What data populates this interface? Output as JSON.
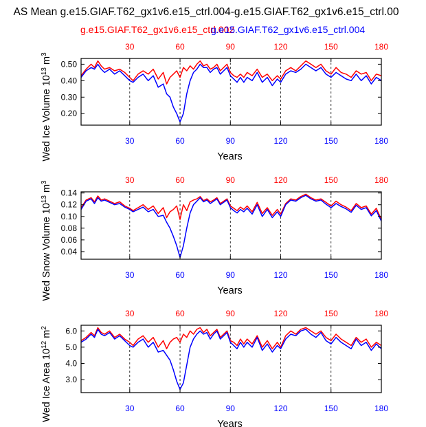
{
  "header": {
    "title": "AS Mean g.e15.GIAF.T62_gx1v6.e15_ctrl.004-g.e15.GIAF.T62_gx1v6.e15_ctrl.00",
    "case_red": "g.e15.GIAF.T62_gx1v6.e15_ctrl.002",
    "case_blue": "g.e15.GIAF.T62_gx1v6.e15_ctrl.004"
  },
  "colors": {
    "red": "#ff0000",
    "blue": "#0000ff",
    "axis": "#000000",
    "grid": "#000000"
  },
  "chart_data": [
    {
      "type": "line",
      "ylabel": "Wed Ice Volume",
      "ylabel_pow_base": "10",
      "ylabel_pow_exp": "13",
      "ylabel_unit": "m",
      "ylabel_unit_exp": "3",
      "xlabel": "Years",
      "xlim": [
        1,
        180
      ],
      "ylim": [
        0.13,
        0.535
      ],
      "yticks": [
        0.2,
        0.3,
        0.4,
        0.5
      ],
      "ytick_labels": [
        "0.20",
        "0.30",
        "0.40",
        "0.50"
      ],
      "xticks": [
        30,
        60,
        90,
        120,
        150,
        180
      ],
      "xtick_labels": [
        "30",
        "60",
        "90",
        "120",
        "150",
        "180"
      ],
      "grid": "vertical dashed at ticks",
      "series": [
        {
          "name": "g.e15.GIAF.T62_gx1v6.e15_ctrl.002",
          "color": "#ff0000",
          "x": [
            1,
            4,
            7,
            9,
            11,
            13,
            15,
            18,
            21,
            24,
            27,
            30,
            32,
            35,
            38,
            41,
            44,
            47,
            50,
            52,
            54,
            56,
            58,
            60,
            62,
            64,
            66,
            68,
            70,
            72,
            74,
            76,
            78,
            80,
            82,
            84,
            86,
            88,
            90,
            92,
            94,
            96,
            98,
            100,
            103,
            106,
            109,
            112,
            115,
            118,
            120,
            123,
            126,
            129,
            132,
            135,
            138,
            141,
            144,
            147,
            150,
            153,
            156,
            159,
            162,
            165,
            168,
            171,
            174,
            177,
            180
          ],
          "y": [
            0.43,
            0.47,
            0.5,
            0.48,
            0.52,
            0.49,
            0.47,
            0.48,
            0.46,
            0.47,
            0.45,
            0.42,
            0.4,
            0.44,
            0.46,
            0.44,
            0.47,
            0.41,
            0.45,
            0.38,
            0.42,
            0.44,
            0.46,
            0.42,
            0.48,
            0.46,
            0.49,
            0.47,
            0.5,
            0.52,
            0.49,
            0.5,
            0.47,
            0.48,
            0.5,
            0.46,
            0.48,
            0.5,
            0.45,
            0.43,
            0.42,
            0.44,
            0.42,
            0.45,
            0.43,
            0.47,
            0.42,
            0.44,
            0.4,
            0.43,
            0.41,
            0.46,
            0.48,
            0.46,
            0.49,
            0.52,
            0.5,
            0.48,
            0.5,
            0.46,
            0.44,
            0.48,
            0.45,
            0.44,
            0.42,
            0.46,
            0.44,
            0.45,
            0.4,
            0.44,
            0.43
          ]
        },
        {
          "name": "g.e15.GIAF.T62_gx1v6.e15_ctrl.004",
          "color": "#0000ff",
          "x": [
            1,
            4,
            7,
            9,
            11,
            13,
            15,
            18,
            21,
            24,
            27,
            30,
            32,
            35,
            38,
            41,
            44,
            47,
            50,
            52,
            54,
            56,
            58,
            60,
            62,
            64,
            66,
            68,
            70,
            72,
            74,
            76,
            78,
            80,
            82,
            84,
            86,
            88,
            90,
            92,
            94,
            96,
            98,
            100,
            103,
            106,
            109,
            112,
            115,
            118,
            120,
            123,
            126,
            129,
            132,
            135,
            138,
            141,
            144,
            147,
            150,
            153,
            156,
            159,
            162,
            165,
            168,
            171,
            174,
            177,
            180
          ],
          "y": [
            0.42,
            0.46,
            0.48,
            0.47,
            0.5,
            0.47,
            0.45,
            0.47,
            0.44,
            0.46,
            0.43,
            0.4,
            0.39,
            0.42,
            0.44,
            0.4,
            0.43,
            0.36,
            0.38,
            0.32,
            0.3,
            0.24,
            0.2,
            0.15,
            0.2,
            0.32,
            0.4,
            0.45,
            0.47,
            0.5,
            0.48,
            0.48,
            0.45,
            0.47,
            0.48,
            0.44,
            0.46,
            0.48,
            0.43,
            0.41,
            0.39,
            0.42,
            0.39,
            0.42,
            0.4,
            0.45,
            0.39,
            0.42,
            0.37,
            0.41,
            0.39,
            0.44,
            0.46,
            0.45,
            0.47,
            0.5,
            0.48,
            0.46,
            0.48,
            0.44,
            0.42,
            0.45,
            0.43,
            0.41,
            0.4,
            0.44,
            0.4,
            0.43,
            0.38,
            0.42,
            0.4
          ]
        }
      ]
    },
    {
      "type": "line",
      "ylabel": "Wed Snow Volume",
      "ylabel_pow_base": "10",
      "ylabel_pow_exp": "13",
      "ylabel_unit": "m",
      "ylabel_unit_exp": "3",
      "xlabel": "Years",
      "xlim": [
        1,
        180
      ],
      "ylim": [
        0.027,
        0.142
      ],
      "yticks": [
        0.04,
        0.06,
        0.08,
        0.1,
        0.12,
        0.14
      ],
      "ytick_labels": [
        "0.04",
        "0.06",
        "0.08",
        "0.10",
        "0.12",
        "0.14"
      ],
      "xticks": [
        30,
        60,
        90,
        120,
        150,
        180
      ],
      "xtick_labels": [
        "30",
        "60",
        "90",
        "120",
        "150",
        "180"
      ],
      "grid": "vertical dashed at ticks",
      "series": [
        {
          "name": "g.e15.GIAF.T62_gx1v6.e15_ctrl.002",
          "color": "#ff0000",
          "x": [
            1,
            4,
            7,
            9,
            11,
            13,
            15,
            18,
            21,
            24,
            27,
            30,
            32,
            35,
            38,
            41,
            44,
            47,
            50,
            52,
            54,
            56,
            58,
            60,
            62,
            64,
            66,
            68,
            70,
            72,
            74,
            76,
            78,
            80,
            82,
            84,
            86,
            88,
            90,
            92,
            94,
            96,
            98,
            100,
            103,
            106,
            109,
            112,
            115,
            118,
            120,
            123,
            126,
            129,
            132,
            135,
            138,
            141,
            144,
            147,
            150,
            153,
            156,
            159,
            162,
            165,
            168,
            171,
            174,
            177,
            180
          ],
          "y": [
            0.115,
            0.128,
            0.132,
            0.125,
            0.135,
            0.128,
            0.13,
            0.126,
            0.122,
            0.125,
            0.118,
            0.114,
            0.11,
            0.115,
            0.12,
            0.112,
            0.118,
            0.105,
            0.115,
            0.098,
            0.108,
            0.112,
            0.118,
            0.095,
            0.12,
            0.11,
            0.125,
            0.128,
            0.13,
            0.134,
            0.127,
            0.13,
            0.125,
            0.128,
            0.132,
            0.122,
            0.126,
            0.13,
            0.118,
            0.114,
            0.11,
            0.116,
            0.112,
            0.118,
            0.108,
            0.124,
            0.105,
            0.115,
            0.102,
            0.112,
            0.104,
            0.122,
            0.13,
            0.128,
            0.134,
            0.138,
            0.132,
            0.128,
            0.13,
            0.124,
            0.118,
            0.126,
            0.12,
            0.116,
            0.11,
            0.122,
            0.115,
            0.118,
            0.104,
            0.114,
            0.095
          ]
        },
        {
          "name": "g.e15.GIAF.T62_gx1v6.e15_ctrl.004",
          "color": "#0000ff",
          "x": [
            1,
            4,
            7,
            9,
            11,
            13,
            15,
            18,
            21,
            24,
            27,
            30,
            32,
            35,
            38,
            41,
            44,
            47,
            50,
            52,
            54,
            56,
            58,
            60,
            62,
            64,
            66,
            68,
            70,
            72,
            74,
            76,
            78,
            80,
            82,
            84,
            86,
            88,
            90,
            92,
            94,
            96,
            98,
            100,
            103,
            106,
            109,
            112,
            115,
            118,
            120,
            123,
            126,
            129,
            132,
            135,
            138,
            141,
            144,
            147,
            150,
            153,
            156,
            159,
            162,
            165,
            168,
            171,
            174,
            177,
            180
          ],
          "y": [
            0.112,
            0.126,
            0.13,
            0.122,
            0.132,
            0.126,
            0.128,
            0.124,
            0.12,
            0.122,
            0.116,
            0.112,
            0.108,
            0.112,
            0.116,
            0.108,
            0.112,
            0.1,
            0.102,
            0.09,
            0.08,
            0.066,
            0.05,
            0.03,
            0.05,
            0.08,
            0.106,
            0.12,
            0.126,
            0.132,
            0.125,
            0.128,
            0.122,
            0.126,
            0.13,
            0.12,
            0.124,
            0.128,
            0.115,
            0.11,
            0.106,
            0.112,
            0.108,
            0.114,
            0.104,
            0.12,
            0.1,
            0.112,
            0.098,
            0.108,
            0.1,
            0.12,
            0.128,
            0.126,
            0.132,
            0.136,
            0.13,
            0.126,
            0.128,
            0.121,
            0.115,
            0.122,
            0.117,
            0.113,
            0.107,
            0.119,
            0.112,
            0.115,
            0.101,
            0.11,
            0.092
          ]
        }
      ]
    },
    {
      "type": "line",
      "ylabel": "Wed Ice Area",
      "ylabel_pow_base": "10",
      "ylabel_pow_exp": "12",
      "ylabel_unit": "m",
      "ylabel_unit_exp": "2",
      "xlabel": "Years",
      "xlim": [
        1,
        180
      ],
      "ylim": [
        2.2,
        6.35
      ],
      "yticks": [
        3.0,
        4.0,
        5.0,
        6.0
      ],
      "ytick_labels": [
        "3.0",
        "4.0",
        "5.0",
        "6.0"
      ],
      "xticks": [
        30,
        60,
        90,
        120,
        150,
        180
      ],
      "xtick_labels": [
        "30",
        "60",
        "90",
        "120",
        "150",
        "180"
      ],
      "grid": "vertical dashed at ticks",
      "series": [
        {
          "name": "g.e15.GIAF.T62_gx1v6.e15_ctrl.002",
          "color": "#ff0000",
          "x": [
            1,
            4,
            7,
            9,
            11,
            13,
            15,
            18,
            21,
            24,
            27,
            30,
            32,
            35,
            38,
            41,
            44,
            47,
            50,
            52,
            54,
            56,
            58,
            60,
            62,
            64,
            66,
            68,
            70,
            72,
            74,
            76,
            78,
            80,
            82,
            84,
            86,
            88,
            90,
            92,
            94,
            96,
            98,
            100,
            103,
            106,
            109,
            112,
            115,
            118,
            120,
            123,
            126,
            129,
            132,
            135,
            138,
            141,
            144,
            147,
            150,
            153,
            156,
            159,
            162,
            165,
            168,
            171,
            174,
            177,
            180
          ],
          "y": [
            5.4,
            5.6,
            5.9,
            5.7,
            6.2,
            5.9,
            5.8,
            6.0,
            5.6,
            5.8,
            5.5,
            5.3,
            5.1,
            5.5,
            5.7,
            5.3,
            5.6,
            5.0,
            5.4,
            4.9,
            5.3,
            5.5,
            5.6,
            5.3,
            5.8,
            5.6,
            6.0,
            5.8,
            6.1,
            6.2,
            5.9,
            6.1,
            5.7,
            5.9,
            6.1,
            5.6,
            5.8,
            6.0,
            5.4,
            5.3,
            5.1,
            5.5,
            5.2,
            5.5,
            5.2,
            5.7,
            5.0,
            5.4,
            4.9,
            5.3,
            5.0,
            5.7,
            6.0,
            5.8,
            6.1,
            6.2,
            6.0,
            5.8,
            6.0,
            5.6,
            5.4,
            5.8,
            5.5,
            5.3,
            5.1,
            5.6,
            5.3,
            5.5,
            5.0,
            5.3,
            5.1
          ]
        },
        {
          "name": "g.e15.GIAF.T62_gx1v6.e15_ctrl.004",
          "color": "#0000ff",
          "x": [
            1,
            4,
            7,
            9,
            11,
            13,
            15,
            18,
            21,
            24,
            27,
            30,
            32,
            35,
            38,
            41,
            44,
            47,
            50,
            52,
            54,
            56,
            58,
            60,
            62,
            64,
            66,
            68,
            70,
            72,
            74,
            76,
            78,
            80,
            82,
            84,
            86,
            88,
            90,
            92,
            94,
            96,
            98,
            100,
            103,
            106,
            109,
            112,
            115,
            118,
            120,
            123,
            126,
            129,
            132,
            135,
            138,
            141,
            144,
            147,
            150,
            153,
            156,
            159,
            162,
            165,
            168,
            171,
            174,
            177,
            180
          ],
          "y": [
            5.3,
            5.5,
            5.8,
            5.6,
            6.1,
            5.8,
            5.7,
            5.9,
            5.5,
            5.7,
            5.4,
            5.1,
            5.0,
            5.3,
            5.5,
            5.0,
            5.3,
            4.7,
            4.8,
            4.5,
            4.2,
            3.6,
            2.9,
            2.4,
            2.8,
            3.9,
            5.0,
            5.5,
            5.8,
            6.0,
            5.8,
            5.9,
            5.5,
            5.8,
            6.0,
            5.5,
            5.7,
            5.9,
            5.3,
            5.1,
            4.9,
            5.3,
            5.0,
            5.3,
            5.0,
            5.6,
            4.8,
            5.2,
            4.7,
            5.1,
            4.9,
            5.5,
            5.8,
            5.7,
            6.0,
            6.1,
            5.8,
            5.6,
            5.9,
            5.4,
            5.2,
            5.6,
            5.3,
            5.1,
            4.9,
            5.5,
            5.1,
            5.3,
            4.8,
            5.2,
            4.9
          ]
        }
      ]
    }
  ]
}
